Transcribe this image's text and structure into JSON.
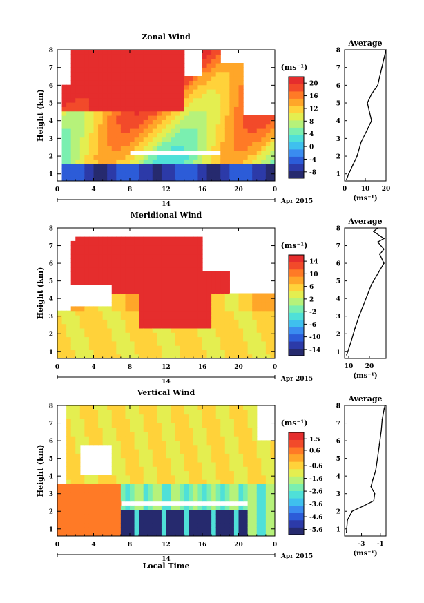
{
  "chart_data": [
    {
      "type": "heatmap",
      "title": "Zonal Wind",
      "xlabel": "",
      "ylabel": "Height (km)",
      "units": "(ms⁻¹)",
      "date_label": "Apr 2015",
      "day_label": "14",
      "x_ticks": [
        "0",
        "4",
        "8",
        "12",
        "16",
        "20",
        "0"
      ],
      "x_range": [
        0,
        24
      ],
      "y_ticks": [
        "1",
        "2",
        "3",
        "4",
        "5",
        "6",
        "7",
        "8"
      ],
      "y_range": [
        0.6,
        8
      ],
      "colorbar_ticks": [
        "20",
        "16",
        "12",
        "8",
        "4",
        "0",
        "-4",
        "-8"
      ],
      "colorbar_range": [
        -10,
        22
      ],
      "profile": {
        "title": "Average",
        "xlabel": "(ms⁻¹)",
        "x_ticks": [
          "0",
          "10",
          "20"
        ],
        "x_range": [
          0,
          20
        ],
        "points": [
          [
            1,
            0.7
          ],
          [
            2,
            1.0
          ],
          [
            4,
            1.5
          ],
          [
            6,
            2.0
          ],
          [
            8,
            2.8
          ],
          [
            11,
            3.5
          ],
          [
            13,
            4.0
          ],
          [
            12,
            4.5
          ],
          [
            11,
            5.0
          ],
          [
            13,
            5.5
          ],
          [
            16,
            6.0
          ],
          [
            17,
            6.5
          ],
          [
            18,
            7.0
          ],
          [
            19,
            7.5
          ],
          [
            20,
            8.0
          ]
        ]
      }
    },
    {
      "type": "heatmap",
      "title": "Meridional Wind",
      "xlabel": "",
      "ylabel": "Height (km)",
      "units": "(ms⁻¹)",
      "date_label": "Apr 2015",
      "day_label": "14",
      "x_ticks": [
        "0",
        "4",
        "8",
        "12",
        "16",
        "20",
        "0"
      ],
      "x_range": [
        0,
        24
      ],
      "y_ticks": [
        "1",
        "2",
        "3",
        "4",
        "5",
        "6",
        "7",
        "8"
      ],
      "y_range": [
        0.6,
        8
      ],
      "colorbar_ticks": [
        "14",
        "10",
        "6",
        "2",
        "-2",
        "-6",
        "-10",
        "-14"
      ],
      "colorbar_range": [
        -16,
        16
      ],
      "profile": {
        "title": "Average",
        "xlabel": "(ms⁻¹)",
        "x_ticks": [
          "10",
          "20"
        ],
        "x_range": [
          8,
          28
        ],
        "points": [
          [
            9,
            0.8
          ],
          [
            11,
            1.5
          ],
          [
            13,
            2.3
          ],
          [
            15,
            3.0
          ],
          [
            17,
            3.6
          ],
          [
            19,
            4.2
          ],
          [
            21,
            4.8
          ],
          [
            24,
            5.4
          ],
          [
            27,
            6.0
          ],
          [
            25,
            6.5
          ],
          [
            27,
            6.8
          ],
          [
            24,
            7.2
          ],
          [
            27,
            7.4
          ],
          [
            22,
            7.8
          ],
          [
            24,
            8.0
          ]
        ]
      }
    },
    {
      "type": "heatmap",
      "title": "Vertical Wind",
      "xlabel": "Local Time",
      "ylabel": "Height (km)",
      "units": "(ms⁻¹)",
      "date_label": "Apr 2015",
      "day_label": "14",
      "x_ticks": [
        "0",
        "4",
        "8",
        "12",
        "16",
        "20",
        "0"
      ],
      "x_range": [
        0,
        24
      ],
      "y_ticks": [
        "1",
        "2",
        "3",
        "4",
        "5",
        "6",
        "7",
        "8"
      ],
      "y_range": [
        0.6,
        8
      ],
      "colorbar_ticks": [
        "1.5",
        "0.6",
        "-0.6",
        "-1.6",
        "-2.6",
        "-3.6",
        "-4.6",
        "-5.6"
      ],
      "colorbar_range": [
        -6,
        2
      ],
      "profile": {
        "title": "Average",
        "xlabel": "(ms⁻¹)",
        "x_ticks": [
          "-3",
          "-1"
        ],
        "x_range": [
          -4.8,
          -0.4
        ],
        "points": [
          [
            -4.6,
            0.8
          ],
          [
            -4.5,
            1.5
          ],
          [
            -4.0,
            2.0
          ],
          [
            -2.8,
            2.3
          ],
          [
            -1.7,
            2.6
          ],
          [
            -1.6,
            3.0
          ],
          [
            -2.0,
            3.4
          ],
          [
            -1.8,
            3.8
          ],
          [
            -1.5,
            4.3
          ],
          [
            -1.3,
            5.0
          ],
          [
            -1.1,
            5.8
          ],
          [
            -0.9,
            6.6
          ],
          [
            -0.8,
            7.2
          ],
          [
            -0.6,
            7.8
          ],
          [
            -0.5,
            8.0
          ]
        ]
      }
    }
  ]
}
